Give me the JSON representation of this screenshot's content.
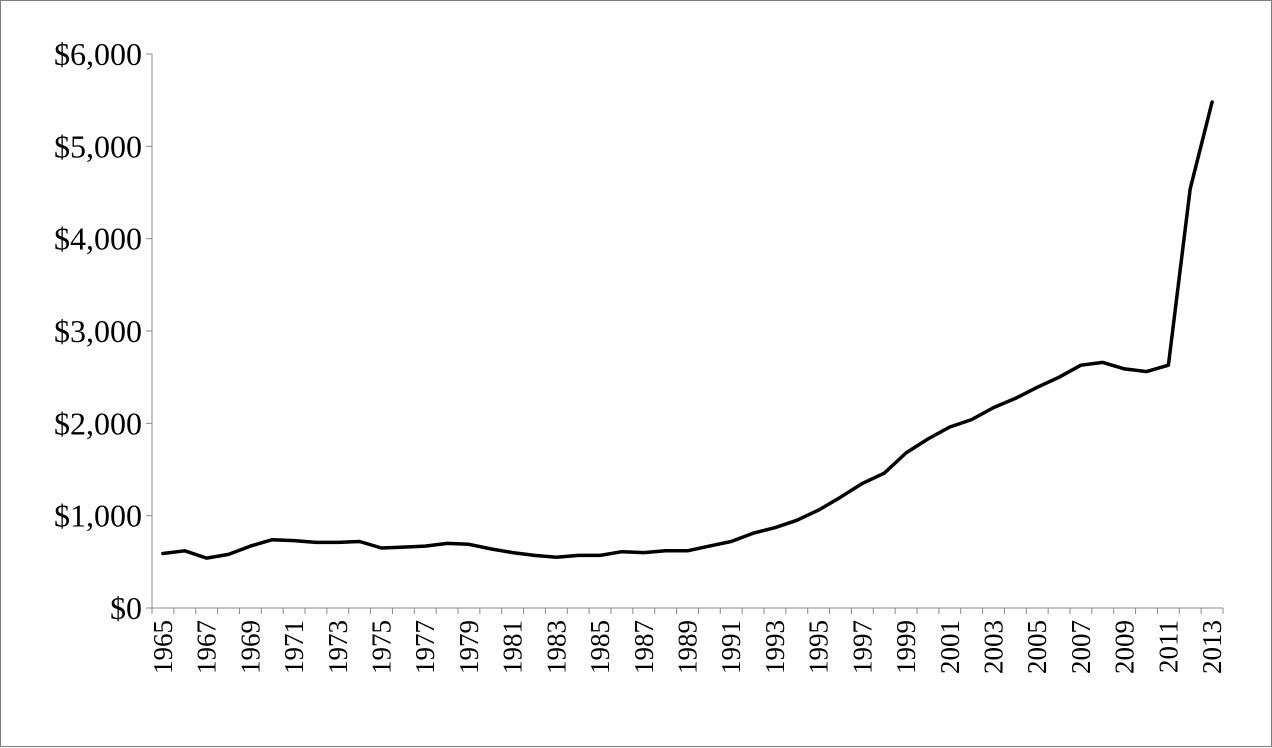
{
  "chart_data": {
    "type": "line",
    "title": "",
    "xlabel": "",
    "ylabel": "",
    "ylim": [
      0,
      6000
    ],
    "yticks": [
      0,
      1000,
      2000,
      3000,
      4000,
      5000,
      6000
    ],
    "ytick_labels": [
      "$0",
      "$1,000",
      "$2,000",
      "$3,000",
      "$4,000",
      "$5,000",
      "$6,000"
    ],
    "x": [
      1965,
      1966,
      1967,
      1968,
      1969,
      1970,
      1971,
      1972,
      1973,
      1974,
      1975,
      1976,
      1977,
      1978,
      1979,
      1980,
      1981,
      1982,
      1983,
      1984,
      1985,
      1986,
      1987,
      1988,
      1989,
      1990,
      1991,
      1992,
      1993,
      1994,
      1995,
      1996,
      1997,
      1998,
      1999,
      2000,
      2001,
      2002,
      2003,
      2004,
      2005,
      2006,
      2007,
      2008,
      2009,
      2010,
      2011,
      2012,
      2013
    ],
    "xtick_labels": [
      "1965",
      "1967",
      "1969",
      "1971",
      "1973",
      "1975",
      "1977",
      "1979",
      "1981",
      "1983",
      "1985",
      "1987",
      "1989",
      "1991",
      "1993",
      "1995",
      "1997",
      "1999",
      "2001",
      "2003",
      "2005",
      "2007",
      "2009",
      "2011",
      "2013"
    ],
    "series": [
      {
        "values": [
          590,
          620,
          540,
          580,
          670,
          740,
          730,
          710,
          710,
          720,
          650,
          660,
          670,
          700,
          690,
          640,
          600,
          570,
          550,
          570,
          570,
          610,
          600,
          620,
          620,
          670,
          720,
          810,
          870,
          950,
          1060,
          1200,
          1350,
          1460,
          1680,
          1830,
          1960,
          2040,
          2170,
          2270,
          2390,
          2500,
          2630,
          2660,
          2590,
          2560,
          2630,
          4540,
          5480
        ],
        "color": "#000000"
      }
    ],
    "grid": false,
    "legend": "none"
  }
}
